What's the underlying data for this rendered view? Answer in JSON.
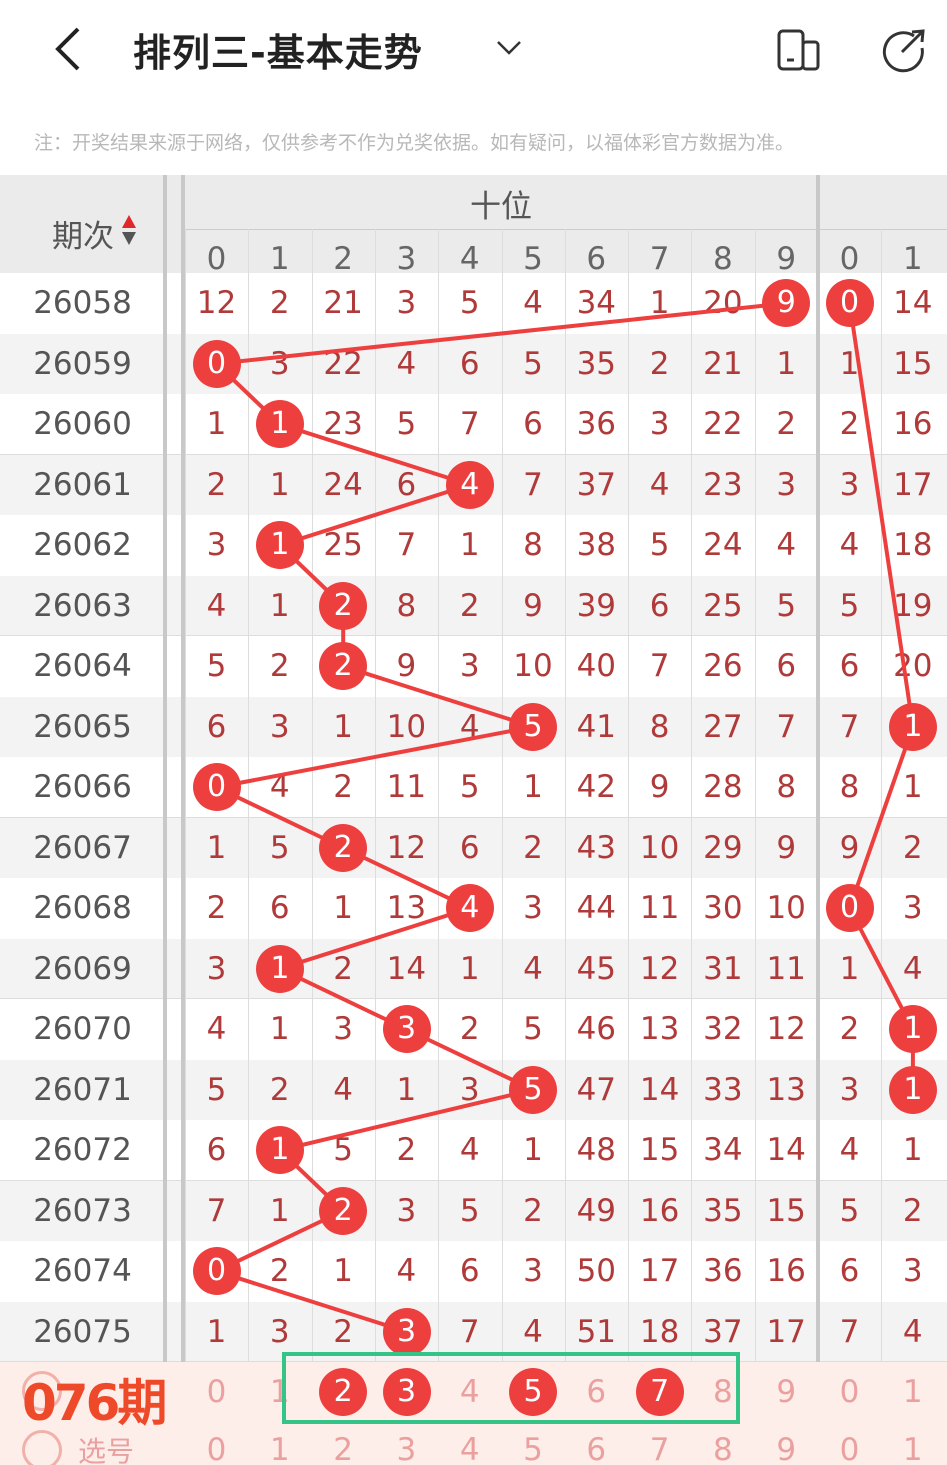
{
  "header": {
    "back_icon": "chevron-left-icon",
    "title": "排列三-基本走势",
    "dropdown_icon": "chevron-down-icon",
    "layout_icon": "device-switch-icon",
    "share_icon": "share-icon"
  },
  "note": "注：开奖结果来源于网络，仅供参考不作为兑奖依据。如有疑问，以福体彩官方数据为准。",
  "table": {
    "period_header": "期次",
    "sort_icon": "sort-icon",
    "group_label": "十位",
    "tens_digits": [
      "0",
      "1",
      "2",
      "3",
      "4",
      "5",
      "6",
      "7",
      "8",
      "9"
    ],
    "units_digits": [
      "0",
      "1"
    ],
    "rows": [
      {
        "period": "26058",
        "tens": [
          "12",
          "2",
          "21",
          "3",
          "5",
          "4",
          "34",
          "1",
          "20",
          "9"
        ],
        "tens_hit": 9,
        "units": [
          "0",
          "14"
        ],
        "units_hit": 0
      },
      {
        "period": "26059",
        "tens": [
          "0",
          "3",
          "22",
          "4",
          "6",
          "5",
          "35",
          "2",
          "21",
          "1"
        ],
        "tens_hit": 0,
        "units": [
          "1",
          "15"
        ],
        "units_hit": null
      },
      {
        "period": "26060",
        "tens": [
          "1",
          "1",
          "23",
          "5",
          "7",
          "6",
          "36",
          "3",
          "22",
          "2"
        ],
        "tens_hit": 1,
        "units": [
          "2",
          "16"
        ],
        "units_hit": null
      },
      {
        "period": "26061",
        "tens": [
          "2",
          "1",
          "24",
          "6",
          "4",
          "7",
          "37",
          "4",
          "23",
          "3"
        ],
        "tens_hit": 4,
        "units": [
          "3",
          "17"
        ],
        "units_hit": null
      },
      {
        "period": "26062",
        "tens": [
          "3",
          "1",
          "25",
          "7",
          "1",
          "8",
          "38",
          "5",
          "24",
          "4"
        ],
        "tens_hit": 1,
        "units": [
          "4",
          "18"
        ],
        "units_hit": null
      },
      {
        "period": "26063",
        "tens": [
          "4",
          "1",
          "2",
          "8",
          "2",
          "9",
          "39",
          "6",
          "25",
          "5"
        ],
        "tens_hit": 2,
        "units": [
          "5",
          "19"
        ],
        "units_hit": null
      },
      {
        "period": "26064",
        "tens": [
          "5",
          "2",
          "2",
          "9",
          "3",
          "10",
          "40",
          "7",
          "26",
          "6"
        ],
        "tens_hit": 2,
        "units": [
          "6",
          "20"
        ],
        "units_hit": null
      },
      {
        "period": "26065",
        "tens": [
          "6",
          "3",
          "1",
          "10",
          "4",
          "5",
          "41",
          "8",
          "27",
          "7"
        ],
        "tens_hit": 5,
        "units": [
          "7",
          "1"
        ],
        "units_hit": 1
      },
      {
        "period": "26066",
        "tens": [
          "0",
          "4",
          "2",
          "11",
          "5",
          "1",
          "42",
          "9",
          "28",
          "8"
        ],
        "tens_hit": 0,
        "units": [
          "8",
          "1"
        ],
        "units_hit": null
      },
      {
        "period": "26067",
        "tens": [
          "1",
          "5",
          "2",
          "12",
          "6",
          "2",
          "43",
          "10",
          "29",
          "9"
        ],
        "tens_hit": 2,
        "units": [
          "9",
          "2"
        ],
        "units_hit": null
      },
      {
        "period": "26068",
        "tens": [
          "2",
          "6",
          "1",
          "13",
          "4",
          "3",
          "44",
          "11",
          "30",
          "10"
        ],
        "tens_hit": 4,
        "units": [
          "0",
          "3"
        ],
        "units_hit": 0
      },
      {
        "period": "26069",
        "tens": [
          "3",
          "1",
          "2",
          "14",
          "1",
          "4",
          "45",
          "12",
          "31",
          "11"
        ],
        "tens_hit": 1,
        "units": [
          "1",
          "4"
        ],
        "units_hit": null
      },
      {
        "period": "26070",
        "tens": [
          "4",
          "1",
          "3",
          "3",
          "2",
          "5",
          "46",
          "13",
          "32",
          "12"
        ],
        "tens_hit": 3,
        "units": [
          "2",
          "1"
        ],
        "units_hit": 1
      },
      {
        "period": "26071",
        "tens": [
          "5",
          "2",
          "4",
          "1",
          "3",
          "5",
          "47",
          "14",
          "33",
          "13"
        ],
        "tens_hit": 5,
        "units": [
          "3",
          "1"
        ],
        "units_hit": 1
      },
      {
        "period": "26072",
        "tens": [
          "6",
          "1",
          "5",
          "2",
          "4",
          "1",
          "48",
          "15",
          "34",
          "14"
        ],
        "tens_hit": 1,
        "units": [
          "4",
          "1"
        ],
        "units_hit": null
      },
      {
        "period": "26073",
        "tens": [
          "7",
          "1",
          "2",
          "3",
          "5",
          "2",
          "49",
          "16",
          "35",
          "15"
        ],
        "tens_hit": 2,
        "units": [
          "5",
          "2"
        ],
        "units_hit": null
      },
      {
        "period": "26074",
        "tens": [
          "0",
          "2",
          "1",
          "4",
          "6",
          "3",
          "50",
          "17",
          "36",
          "16"
        ],
        "tens_hit": 0,
        "units": [
          "6",
          "3"
        ],
        "units_hit": null
      },
      {
        "period": "26075",
        "tens": [
          "1",
          "3",
          "2",
          "3",
          "7",
          "4",
          "51",
          "18",
          "37",
          "17"
        ],
        "tens_hit": 3,
        "units": [
          "7",
          "4"
        ],
        "units_hit": null
      }
    ],
    "prediction": {
      "label": "076期",
      "radio_label": "选号",
      "selected": [
        2,
        3,
        5,
        7
      ],
      "digits": [
        "0",
        "1",
        "2",
        "3",
        "4",
        "5",
        "6",
        "7",
        "8",
        "9",
        "0",
        "1"
      ]
    },
    "select_row": {
      "radio_label": "选号",
      "digits": [
        "0",
        "1",
        "2",
        "3",
        "4",
        "5",
        "6",
        "7",
        "8",
        "9",
        "0",
        "1"
      ]
    }
  },
  "colors": {
    "ball": "#ee3f3f",
    "number": "#b03a3a",
    "highlight_box": "#35c487",
    "prediction_text": "#ee4a2a"
  }
}
